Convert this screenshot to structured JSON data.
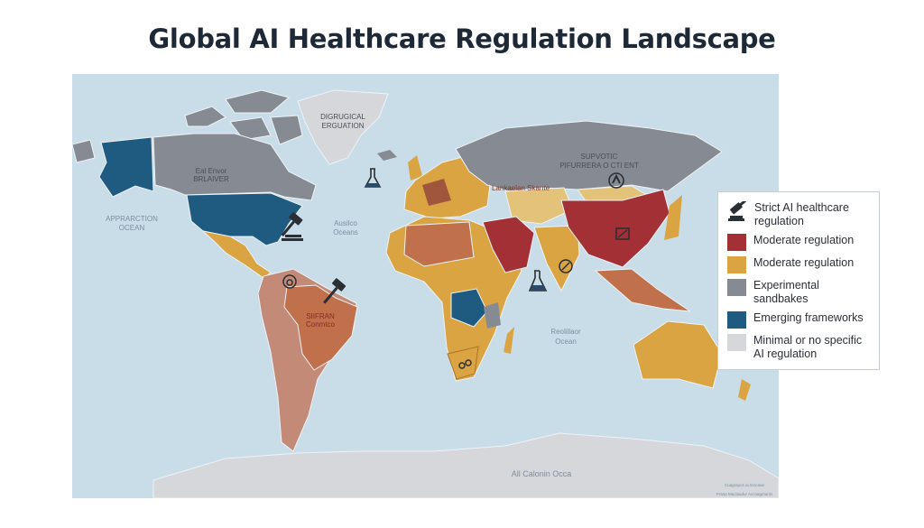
{
  "title": "Global AI Healthcare Regulation Landscape",
  "colors": {
    "ocean": "#c9dde9",
    "strict": "#a33035",
    "moderate": "#d9a441",
    "moderate_alt": "#c0704a",
    "sandbox": "#868b93",
    "emerging": "#1f5a80",
    "minimal": "#d5d7da"
  },
  "legend": {
    "items": [
      {
        "icon": "gavel-icon",
        "label": "Strict AI healthcare regulation"
      },
      {
        "color": "#a33035",
        "label": "Moderate regulation"
      },
      {
        "color": "#d9a441",
        "label": "Moderate regulation"
      },
      {
        "color": "#868b93",
        "label": "Experimental sandbakes"
      },
      {
        "color": "#1f5a80",
        "label": "Emerging frameworks"
      },
      {
        "color": "#d5d7da",
        "label": "Minimal or no specific AI regulation"
      }
    ]
  },
  "map_labels": {
    "greenland_1": "DIGRUGICAL",
    "greenland_2": "ERGUATION",
    "canada_1": "Eal Envor",
    "canada_2": "BRLAIVER",
    "pacific_1": "APPRARCTION",
    "pacific_2": "OCEAN",
    "atlantic_1": "Ausilco",
    "atlantic_2": "Oceans",
    "russia_1": "SUPVOTIC",
    "russia_2": "PIFURRERA O CTI ENT",
    "indian_1": "Reolillaor",
    "indian_2": "Ocean",
    "brazil_1": "SIIFRAN",
    "brazil_2": "Conmtco",
    "antarctic": "All Calonin Occa",
    "central_asia": "Lankaelan Skante",
    "credit_1": "Cuagrapos ai nrocaae",
    "credit_2": "Pranp Maclaadur Accnagmants"
  }
}
